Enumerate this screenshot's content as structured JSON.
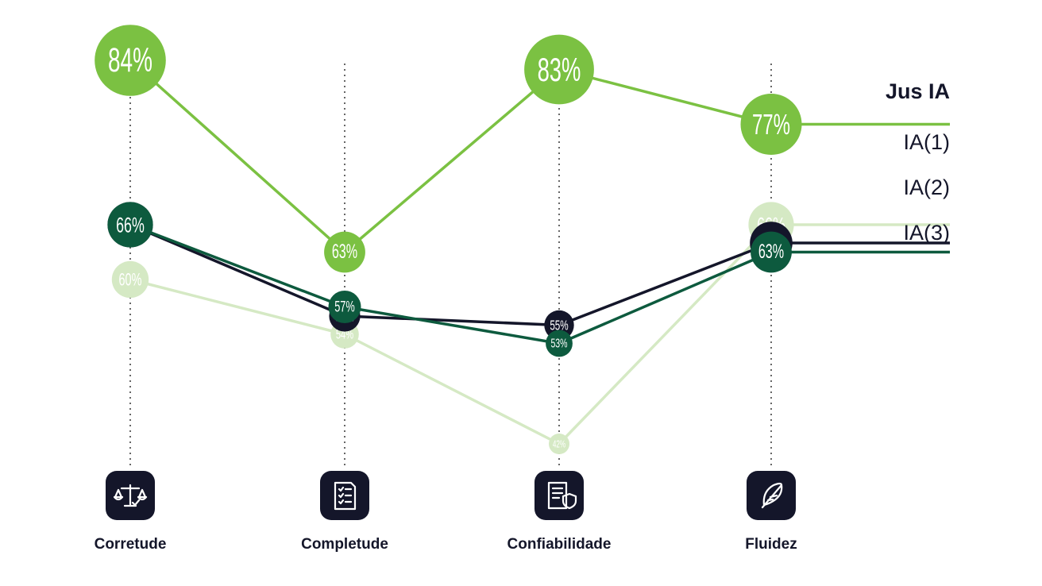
{
  "chart_data": {
    "type": "line",
    "categories": [
      "Corretude",
      "Completude",
      "Confiabilidade",
      "Fluidez"
    ],
    "series": [
      {
        "name": "Jus IA",
        "values": [
          84,
          63,
          83,
          77
        ],
        "color": "#7bc142",
        "label_color": "#ffffff"
      },
      {
        "name": "IA(1)",
        "values": [
          60,
          54,
          42,
          66
        ],
        "color": "#d5e9c4",
        "label_color": "#14162a"
      },
      {
        "name": "IA(2)",
        "values": [
          66,
          56,
          55,
          64
        ],
        "color": "#14162a",
        "label_color": "#ffffff"
      },
      {
        "name": "IA(3)",
        "values": [
          66,
          57,
          53,
          63
        ],
        "color": "#0d5a3e",
        "label_color": "#ffffff"
      }
    ],
    "value_suffix": "%",
    "icons": [
      "scale-icon",
      "checklist-icon",
      "document-shield-icon",
      "feather-icon"
    ],
    "legend": "right",
    "grid": false
  }
}
